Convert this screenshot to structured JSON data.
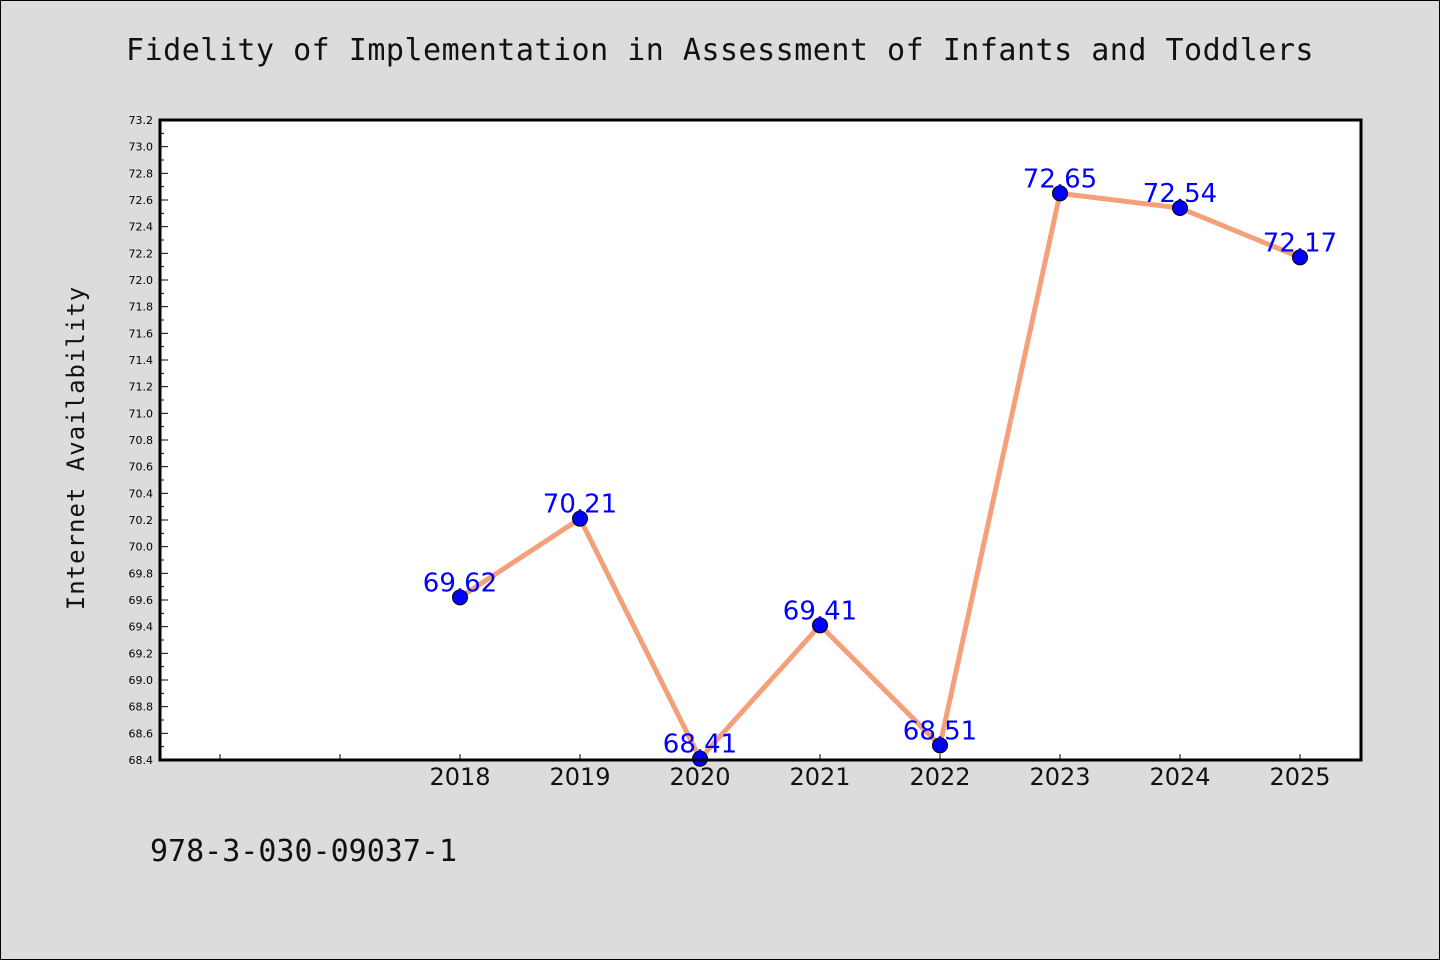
{
  "chart_data": {
    "type": "line",
    "title": "Fidelity of Implementation in Assessment of Infants and Toddlers",
    "xlabel": "",
    "ylabel": "Internet Availability",
    "x": [
      "2018",
      "2019",
      "2020",
      "2021",
      "2022",
      "2023",
      "2024",
      "2025"
    ],
    "series": [
      {
        "values": [
          69.62,
          70.21,
          68.41,
          69.41,
          68.51,
          72.65,
          72.54,
          72.17
        ],
        "data_labels": [
          "69.62",
          "70.21",
          "68.41",
          "69.41",
          "68.51",
          "72.65",
          "72.54",
          "72.17"
        ]
      }
    ],
    "ylim": [
      68.4,
      73.2
    ],
    "y_ticks": [
      "68.4",
      "68.6",
      "68.8",
      "69.0",
      "69.2",
      "69.4",
      "69.6",
      "69.8",
      "70.0",
      "70.2",
      "70.4",
      "70.6",
      "70.8",
      "71.0",
      "71.2",
      "71.4",
      "71.6",
      "71.8",
      "72.0",
      "72.2",
      "72.4",
      "72.6",
      "72.8",
      "73.0",
      "73.2"
    ],
    "grid": false,
    "colors": {
      "line": "#f4a07a",
      "marker": "#0000ff",
      "label": "#0000ff",
      "background": "#dcdcdc",
      "plot_background": "#ffffff"
    }
  },
  "footer": {
    "isbn": "978-3-030-09037-1"
  }
}
